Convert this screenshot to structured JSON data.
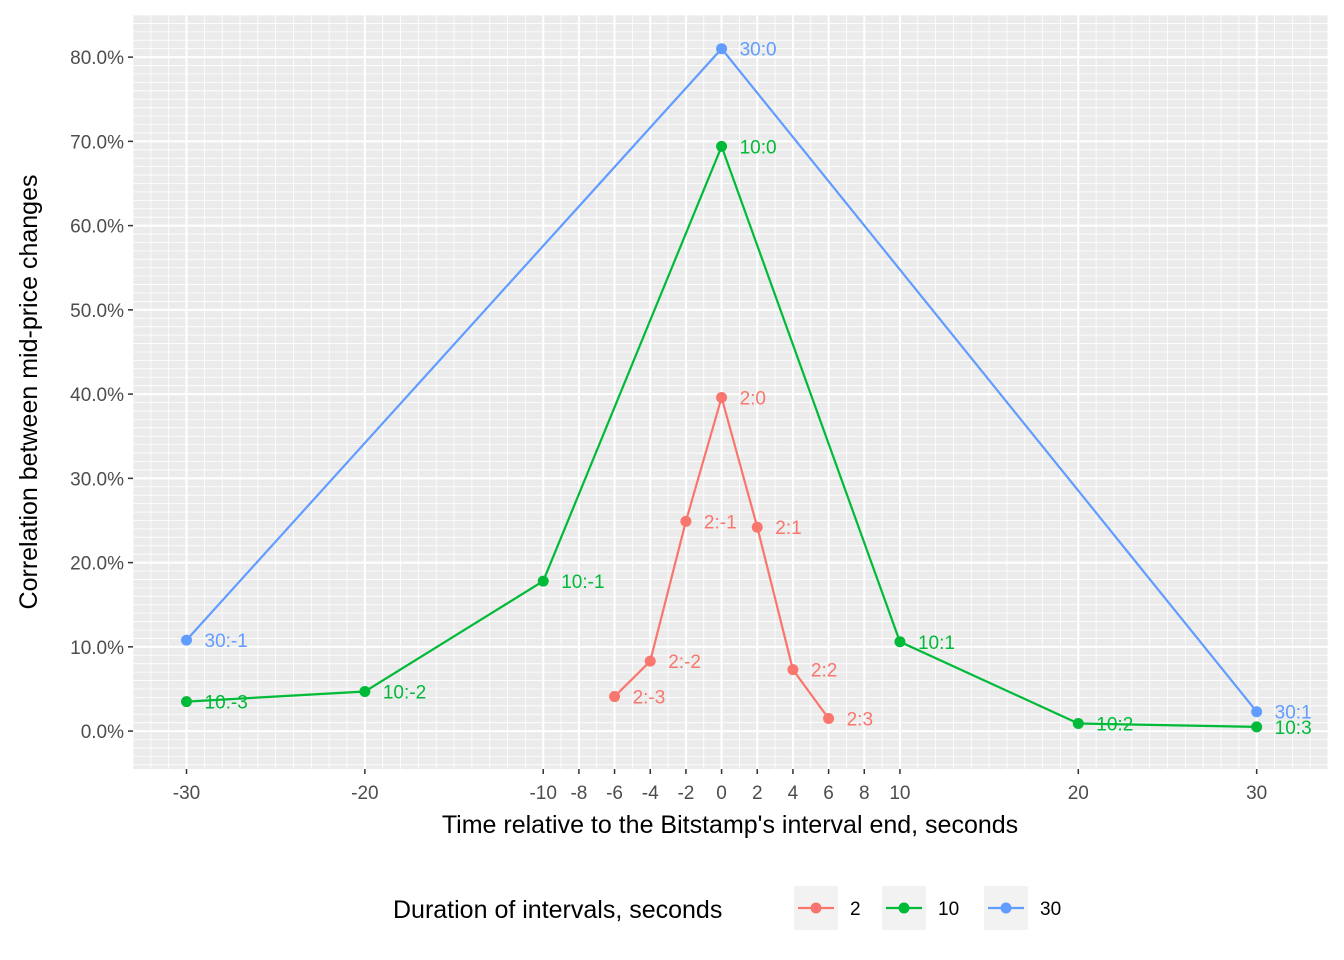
{
  "chart_data": {
    "type": "line",
    "xlabel": "Time relative to the Bitstamp's interval end, seconds",
    "ylabel": "Correlation between mid-price changes",
    "xlim": [
      -33,
      34
    ],
    "ylim": [
      -4.5,
      85
    ],
    "x_ticks": [
      -30,
      -20,
      -10,
      -8,
      -6,
      -4,
      -2,
      0,
      2,
      4,
      6,
      8,
      10,
      20,
      30
    ],
    "y_ticks": [
      0,
      10,
      20,
      30,
      40,
      50,
      60,
      70,
      80
    ],
    "y_tick_labels": [
      "0.0%",
      "10.0%",
      "20.0%",
      "30.0%",
      "40.0%",
      "50.0%",
      "60.0%",
      "70.0%",
      "80.0%"
    ],
    "series": [
      {
        "name": "2",
        "color": "#F8766D",
        "x": [
          -6,
          -4,
          -2,
          0,
          2,
          4,
          6
        ],
        "y": [
          4.1,
          8.3,
          24.9,
          39.6,
          24.2,
          7.3,
          1.5
        ],
        "labels": [
          "2:-3",
          "2:-2",
          "2:-1",
          "2:0",
          "2:1",
          "2:2",
          "2:3"
        ]
      },
      {
        "name": "10",
        "color": "#00BA38",
        "x": [
          -30,
          -20,
          -10,
          0,
          10,
          20,
          30
        ],
        "y": [
          3.5,
          4.7,
          17.8,
          69.4,
          10.6,
          0.9,
          0.5
        ],
        "labels": [
          "10:-3",
          "10:-2",
          "10:-1",
          "10:0",
          "10:1",
          "10:2",
          "10:3"
        ]
      },
      {
        "name": "30",
        "color": "#619CFF",
        "x": [
          -30,
          0,
          30
        ],
        "y": [
          10.8,
          81.0,
          2.3
        ],
        "labels": [
          "30:-1",
          "30:0",
          "30:1"
        ]
      }
    ],
    "legend": {
      "title": "Duration of intervals, seconds",
      "position": "bottom",
      "entries": [
        "2",
        "10",
        "30"
      ]
    }
  }
}
